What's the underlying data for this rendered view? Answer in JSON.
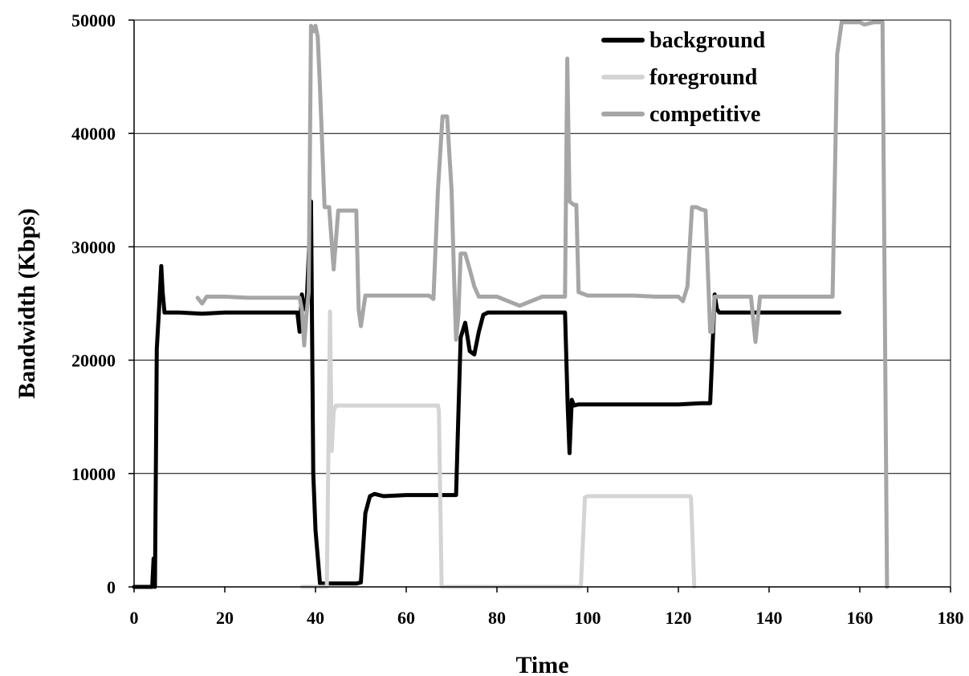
{
  "chart_data": {
    "type": "line",
    "title": "",
    "xlabel": "Time",
    "ylabel": "Bandwidth (Kbps)",
    "xlim": [
      0,
      180
    ],
    "ylim": [
      0,
      50000
    ],
    "x_ticks": [
      0,
      20,
      40,
      60,
      80,
      100,
      120,
      140,
      160,
      180
    ],
    "y_ticks": [
      0,
      10000,
      20000,
      30000,
      40000,
      50000
    ],
    "grid": "horizontal",
    "legend_position": "top-right",
    "series": [
      {
        "name": "background",
        "color": "#000000",
        "x": [
          0,
          4,
          4.3,
          4.6,
          5,
          5.5,
          6,
          6.3,
          6.7,
          7.2,
          10,
          15,
          20,
          25,
          30,
          35,
          36,
          36.5,
          37,
          37.6,
          38,
          39,
          39.5,
          40,
          41,
          42,
          43,
          46,
          48,
          49,
          50,
          51,
          52,
          53,
          55,
          60,
          65,
          70,
          71,
          71.6,
          72,
          73,
          74,
          75,
          76,
          77,
          78,
          79,
          80,
          85,
          90,
          94,
          95,
          95.6,
          96,
          96.5,
          97,
          98,
          100,
          110,
          120,
          125,
          127,
          127.4,
          128,
          128.5,
          129,
          130,
          135,
          140,
          145,
          150,
          155.5
        ],
        "y": [
          0,
          0,
          2500,
          0,
          21000,
          24500,
          28300,
          26000,
          24200,
          24200,
          24200,
          24100,
          24200,
          24200,
          24200,
          24200,
          24200,
          22500,
          25800,
          24500,
          24500,
          34000,
          10000,
          5000,
          300,
          300,
          300,
          300,
          300,
          300,
          400,
          6500,
          8000,
          8200,
          8000,
          8100,
          8100,
          8100,
          8100,
          16500,
          22000,
          23300,
          20800,
          20500,
          22500,
          24000,
          24200,
          24200,
          24200,
          24200,
          24200,
          24200,
          24200,
          16000,
          11800,
          16500,
          16000,
          16100,
          16100,
          16100,
          16100,
          16200,
          16200,
          19800,
          25800,
          24500,
          24200,
          24200,
          24200,
          24200,
          24200,
          24200,
          24200
        ]
      },
      {
        "name": "foreground",
        "color": "#d4d4d4",
        "x": [
          37,
          42.5,
          43.2,
          43.6,
          44,
          44.5,
          45,
          46,
          50,
          52,
          55,
          60,
          65,
          67,
          67.2,
          67.8,
          98.5,
          99.4,
          100,
          105,
          110,
          115,
          120,
          122.6,
          122.8,
          123.5
        ],
        "y": [
          0,
          0,
          24300,
          12000,
          15500,
          16000,
          16000,
          16000,
          16000,
          16000,
          16000,
          16000,
          16000,
          16000,
          15500,
          0,
          0,
          7900,
          8000,
          8000,
          8000,
          8000,
          8000,
          8000,
          7800,
          0
        ]
      },
      {
        "name": "competitive",
        "color": "#a6a6a6",
        "x": [
          14,
          15,
          16,
          20,
          25,
          30,
          35,
          36.5,
          37,
          37.5,
          38,
          38.5,
          39,
          39.5,
          40,
          40.5,
          41,
          42,
          43,
          44,
          45,
          45.5,
          46,
          47,
          48,
          49,
          49.5,
          50,
          51,
          52,
          55,
          60,
          65,
          66,
          67,
          68,
          69,
          70,
          70.5,
          71,
          71.5,
          72,
          73,
          74,
          75,
          76,
          80,
          85,
          90,
          94,
          95,
          95.5,
          96,
          97,
          97.5,
          98,
          100,
          105,
          110,
          115,
          120,
          121,
          122,
          122.5,
          123,
          124,
          125,
          126,
          127,
          127.5,
          128,
          129,
          130,
          135,
          136,
          137,
          138,
          140,
          145,
          150,
          153,
          154,
          155,
          156,
          157,
          160,
          161,
          163,
          164,
          165,
          165.5,
          166
        ],
        "y": [
          25500,
          25000,
          25600,
          25600,
          25500,
          25500,
          25500,
          25500,
          24500,
          21300,
          24000,
          26000,
          49500,
          49000,
          49500,
          48500,
          44000,
          33500,
          33500,
          28000,
          33200,
          33200,
          33200,
          33200,
          33200,
          33200,
          24500,
          23000,
          25700,
          25700,
          25700,
          25700,
          25700,
          25400,
          35000,
          41500,
          41500,
          35000,
          28000,
          21800,
          24000,
          29400,
          29400,
          28000,
          26500,
          25600,
          25600,
          24800,
          25600,
          25600,
          25600,
          46600,
          34000,
          33700,
          33700,
          26000,
          25700,
          25700,
          25700,
          25600,
          25600,
          25200,
          26500,
          30000,
          33500,
          33500,
          33300,
          33200,
          22500,
          22500,
          25600,
          25600,
          25600,
          25600,
          25600,
          21600,
          25600,
          25600,
          25600,
          25600,
          25600,
          25600,
          47000,
          49800,
          49800,
          49800,
          49600,
          49800,
          49800,
          49800,
          25000,
          0
        ]
      }
    ]
  }
}
